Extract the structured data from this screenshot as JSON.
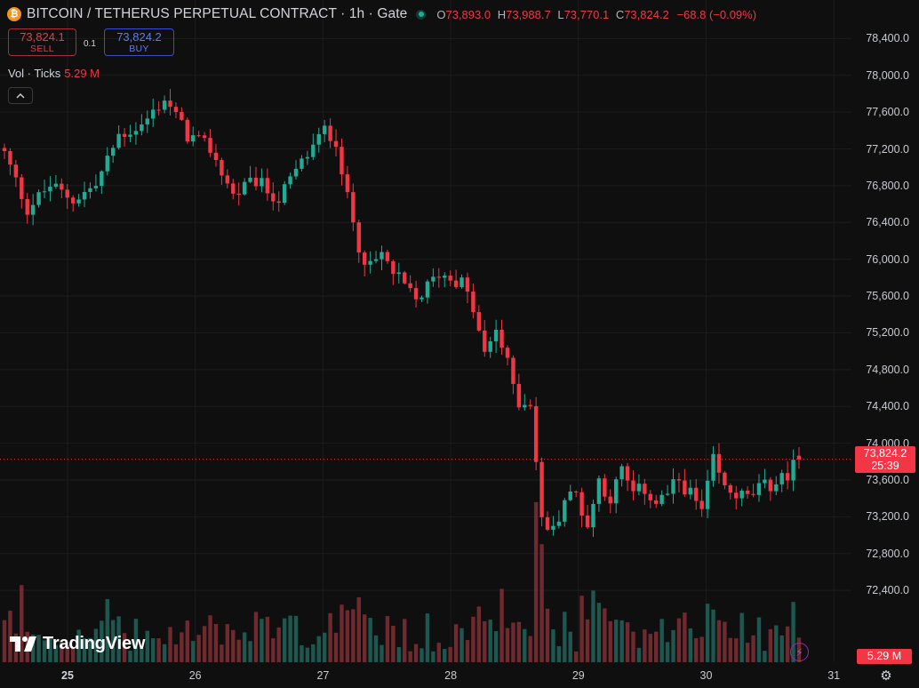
{
  "header": {
    "title": "BITCOIN / TETHERUS PERPETUAL CONTRACT · 1h · Gate",
    "ohlc": {
      "o_label": "O",
      "o": "73,893.0",
      "h_label": "H",
      "h": "73,988.7",
      "l_label": "L",
      "l": "73,770.1",
      "c_label": "C",
      "c": "73,824.2",
      "change": "−68.8 (−0.09%)"
    }
  },
  "trade": {
    "sell_price": "73,824.1",
    "sell_label": "SELL",
    "spread": "0.1",
    "buy_price": "73,824.2",
    "buy_label": "BUY"
  },
  "volume_legend": {
    "label": "Vol · Ticks",
    "value": "5.29 M"
  },
  "last_price": {
    "price": "73,824.2",
    "countdown": "25:39"
  },
  "volume_tag": "5.29 M",
  "logo_text": "TradingView",
  "colors": {
    "up": "#22ab94",
    "down": "#f23645",
    "background": "#0f0f0f",
    "grid": "#1e1e1e"
  },
  "icons": [
    "bitcoin-icon",
    "market-status-icon",
    "collapse-chevron-icon",
    "tradingview-logo-icon",
    "lightning-icon",
    "settings-gear-icon"
  ],
  "chart_data": {
    "type": "candlestick",
    "interval": "1h",
    "y_axis_ticks": [
      "78,400.0",
      "78,000.0",
      "77,600.0",
      "77,200.0",
      "76,800.0",
      "76,400.0",
      "76,000.0",
      "75,600.0",
      "75,200.0",
      "74,800.0",
      "74,400.0",
      "74,000.0",
      "73,600.0",
      "73,200.0",
      "72,800.0",
      "72,400.0"
    ],
    "ylim": [
      72150,
      78500
    ],
    "x_axis_ticks": [
      {
        "label": "25",
        "bold": true
      },
      {
        "label": "26",
        "bold": false
      },
      {
        "label": "27",
        "bold": false
      },
      {
        "label": "28",
        "bold": false
      },
      {
        "label": "29",
        "bold": false
      },
      {
        "label": "30",
        "bold": false
      },
      {
        "label": "31",
        "bold": false
      }
    ],
    "close_path": [
      [
        0,
        77150
      ],
      [
        4,
        76550
      ],
      [
        8,
        76800
      ],
      [
        12,
        76650
      ],
      [
        16,
        76800
      ],
      [
        20,
        77350
      ],
      [
        24,
        77450
      ],
      [
        28,
        77750
      ],
      [
        32,
        77350
      ],
      [
        36,
        77200
      ],
      [
        40,
        76700
      ],
      [
        44,
        76850
      ],
      [
        48,
        76650
      ],
      [
        52,
        77050
      ],
      [
        56,
        77400
      ],
      [
        58,
        77300
      ],
      [
        60,
        76650
      ],
      [
        62,
        76150
      ],
      [
        64,
        75900
      ],
      [
        66,
        76050
      ],
      [
        68,
        75850
      ],
      [
        72,
        75550
      ],
      [
        76,
        75850
      ],
      [
        80,
        75750
      ],
      [
        82,
        75450
      ],
      [
        84,
        74950
      ],
      [
        86,
        75250
      ],
      [
        88,
        74850
      ],
      [
        90,
        74450
      ],
      [
        92,
        74450
      ],
      [
        94,
        73150
      ],
      [
        96,
        73050
      ],
      [
        98,
        73400
      ],
      [
        100,
        73450
      ],
      [
        102,
        73100
      ],
      [
        104,
        73600
      ],
      [
        106,
        73400
      ],
      [
        108,
        73700
      ],
      [
        110,
        73450
      ],
      [
        112,
        73500
      ],
      [
        114,
        73350
      ],
      [
        116,
        73450
      ],
      [
        118,
        73600
      ],
      [
        120,
        73450
      ],
      [
        122,
        73250
      ],
      [
        124,
        73800
      ],
      [
        126,
        73500
      ],
      [
        128,
        73450
      ],
      [
        130,
        73400
      ],
      [
        132,
        73500
      ],
      [
        134,
        73550
      ],
      [
        136,
        73600
      ],
      [
        138,
        73750
      ],
      [
        139,
        73824.2
      ]
    ],
    "volume_max": 5.29
  }
}
